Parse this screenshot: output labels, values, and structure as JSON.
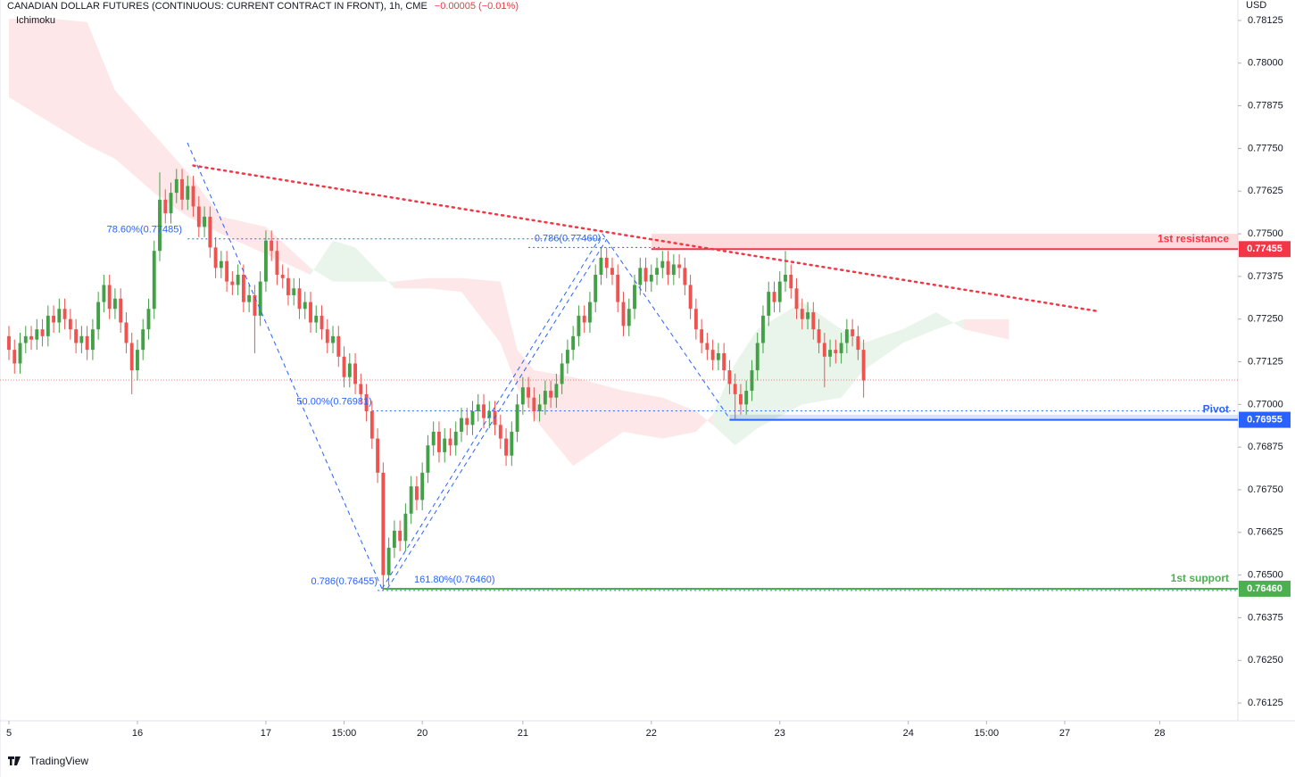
{
  "header": {
    "title": "CANADIAN DOLLAR FUTURES (CONTINUOUS: CURRENT CONTRACT IN FRONT), 1h, CME",
    "change": "−0.00005 (−0.01%)",
    "indicator": "Ichimoku",
    "currency": "USD",
    "brand": "TradingView"
  },
  "chart_data": {
    "type": "candlestick",
    "up_color": "#43a047",
    "down_color": "#ef5350",
    "xlim": [
      0,
      220
    ],
    "xticks": [
      {
        "value": 0,
        "label": "5"
      },
      {
        "value": 23,
        "label": "16"
      },
      {
        "value": 46,
        "label": "17"
      },
      {
        "value": 60,
        "label": "15:00"
      },
      {
        "value": 74,
        "label": "20"
      },
      {
        "value": 92,
        "label": "21"
      },
      {
        "value": 115,
        "label": "22"
      },
      {
        "value": 138,
        "label": "23"
      },
      {
        "value": 161,
        "label": "24"
      },
      {
        "value": 175,
        "label": "15:00"
      },
      {
        "value": 189,
        "label": "27"
      },
      {
        "value": 206,
        "label": "28"
      }
    ],
    "ylim": [
      0.76073,
      0.78185
    ],
    "yticks": [
      {
        "value": 0.78125,
        "label": "0.78125"
      },
      {
        "value": 0.78,
        "label": "0.78000"
      },
      {
        "value": 0.77875,
        "label": "0.77875"
      },
      {
        "value": 0.7775,
        "label": "0.77750"
      },
      {
        "value": 0.77625,
        "label": "0.77625"
      },
      {
        "value": 0.775,
        "label": "0.77500"
      },
      {
        "value": 0.77375,
        "label": "0.77375"
      },
      {
        "value": 0.7725,
        "label": "0.77250"
      },
      {
        "value": 0.77125,
        "label": "0.77125"
      },
      {
        "value": 0.77,
        "label": "0.77000"
      },
      {
        "value": 0.76875,
        "label": "0.76875"
      },
      {
        "value": 0.7675,
        "label": "0.76750"
      },
      {
        "value": 0.76625,
        "label": "0.76625"
      },
      {
        "value": 0.765,
        "label": "0.76500"
      },
      {
        "value": 0.76375,
        "label": "0.76375"
      },
      {
        "value": 0.7625,
        "label": "0.76250"
      },
      {
        "value": 0.76125,
        "label": "0.76125"
      }
    ],
    "x": [
      0,
      1,
      2,
      3,
      4,
      5,
      6,
      7,
      8,
      9,
      10,
      11,
      12,
      13,
      14,
      15,
      16,
      17,
      18,
      19,
      20,
      21,
      22,
      23,
      24,
      25,
      26,
      27,
      28,
      29,
      30,
      31,
      32,
      33,
      34,
      35,
      36,
      37,
      38,
      39,
      40,
      41,
      42,
      43,
      44,
      45,
      46,
      47,
      48,
      49,
      50,
      51,
      52,
      53,
      54,
      55,
      56,
      57,
      58,
      59,
      60,
      61,
      62,
      63,
      64,
      65,
      66,
      67,
      68,
      69,
      70,
      71,
      72,
      73,
      74,
      75,
      76,
      77,
      78,
      79,
      80,
      81,
      82,
      83,
      84,
      85,
      86,
      87,
      88,
      89,
      90,
      91,
      92,
      93,
      94,
      95,
      96,
      97,
      98,
      99,
      100,
      101,
      102,
      103,
      104,
      105,
      106,
      107,
      108,
      109,
      110,
      111,
      112,
      113,
      114,
      115,
      116,
      117,
      118,
      119,
      120,
      121,
      122,
      123,
      124,
      125,
      126,
      127,
      128,
      129,
      130,
      131,
      132,
      133,
      134,
      135,
      136,
      137,
      138,
      139,
      140,
      141,
      142,
      143,
      144,
      145,
      146,
      147,
      148,
      149,
      150,
      151,
      152,
      153
    ],
    "ohlc": [
      [
        0.772,
        0.7723,
        0.7713,
        0.7716
      ],
      [
        0.7716,
        0.7719,
        0.7709,
        0.7712
      ],
      [
        0.7712,
        0.7721,
        0.7709,
        0.7718
      ],
      [
        0.7718,
        0.7723,
        0.7715,
        0.772
      ],
      [
        0.772,
        0.7723,
        0.7716,
        0.7719
      ],
      [
        0.7719,
        0.7725,
        0.7716,
        0.7722
      ],
      [
        0.7722,
        0.7725,
        0.7717,
        0.772
      ],
      [
        0.772,
        0.7729,
        0.7717,
        0.7726
      ],
      [
        0.7726,
        0.7729,
        0.7721,
        0.7724
      ],
      [
        0.7724,
        0.7731,
        0.7721,
        0.7728
      ],
      [
        0.7728,
        0.7731,
        0.7722,
        0.7725
      ],
      [
        0.7725,
        0.7728,
        0.7719,
        0.7722
      ],
      [
        0.7722,
        0.7725,
        0.7715,
        0.7718
      ],
      [
        0.7718,
        0.7723,
        0.7715,
        0.772
      ],
      [
        0.772,
        0.7723,
        0.7713,
        0.7716
      ],
      [
        0.7716,
        0.7725,
        0.7713,
        0.7722
      ],
      [
        0.7722,
        0.7733,
        0.7719,
        0.773
      ],
      [
        0.773,
        0.7738,
        0.7727,
        0.7735
      ],
      [
        0.7735,
        0.7738,
        0.7725,
        0.7728
      ],
      [
        0.7728,
        0.7734,
        0.7725,
        0.7731
      ],
      [
        0.7731,
        0.7734,
        0.7721,
        0.7724
      ],
      [
        0.7724,
        0.7727,
        0.7715,
        0.7718
      ],
      [
        0.7718,
        0.7721,
        0.7703,
        0.771
      ],
      [
        0.771,
        0.7719,
        0.7707,
        0.7716
      ],
      [
        0.7716,
        0.7725,
        0.7713,
        0.7722
      ],
      [
        0.7722,
        0.7731,
        0.7719,
        0.7728
      ],
      [
        0.7728,
        0.7748,
        0.7725,
        0.7745
      ],
      [
        0.7745,
        0.7768,
        0.7742,
        0.776
      ],
      [
        0.776,
        0.7763,
        0.7753,
        0.7756
      ],
      [
        0.7756,
        0.7765,
        0.7753,
        0.7762
      ],
      [
        0.7762,
        0.7769,
        0.7759,
        0.7766
      ],
      [
        0.7766,
        0.7769,
        0.7757,
        0.776
      ],
      [
        0.776,
        0.7767,
        0.7757,
        0.7764
      ],
      [
        0.7764,
        0.7767,
        0.7755,
        0.7758
      ],
      [
        0.7758,
        0.7761,
        0.7749,
        0.7752
      ],
      [
        0.7752,
        0.7758,
        0.7749,
        0.7755
      ],
      [
        0.7755,
        0.7758,
        0.7743,
        0.7746
      ],
      [
        0.7746,
        0.7749,
        0.7737,
        0.774
      ],
      [
        0.774,
        0.7745,
        0.7737,
        0.7742
      ],
      [
        0.7742,
        0.7745,
        0.7733,
        0.7736
      ],
      [
        0.7736,
        0.7739,
        0.7732,
        0.7735
      ],
      [
        0.7735,
        0.7741,
        0.7732,
        0.7738
      ],
      [
        0.7738,
        0.7741,
        0.7727,
        0.773
      ],
      [
        0.773,
        0.7735,
        0.7727,
        0.7732
      ],
      [
        0.7732,
        0.7735,
        0.7715,
        0.7726
      ],
      [
        0.7726,
        0.7739,
        0.7723,
        0.7736
      ],
      [
        0.7736,
        0.7751,
        0.7733,
        0.7748
      ],
      [
        0.7748,
        0.7751,
        0.7742,
        0.7745
      ],
      [
        0.7745,
        0.7748,
        0.7735,
        0.7738
      ],
      [
        0.7738,
        0.7741,
        0.7734,
        0.7737
      ],
      [
        0.7737,
        0.774,
        0.7729,
        0.7732
      ],
      [
        0.7732,
        0.7737,
        0.7729,
        0.7734
      ],
      [
        0.7734,
        0.7737,
        0.7725,
        0.7728
      ],
      [
        0.7728,
        0.7733,
        0.7725,
        0.773
      ],
      [
        0.773,
        0.7733,
        0.7721,
        0.7724
      ],
      [
        0.7724,
        0.7729,
        0.7721,
        0.7726
      ],
      [
        0.7726,
        0.7729,
        0.7719,
        0.7722
      ],
      [
        0.7722,
        0.7725,
        0.7715,
        0.7718
      ],
      [
        0.7718,
        0.7723,
        0.7715,
        0.772
      ],
      [
        0.772,
        0.7723,
        0.7711,
        0.7714
      ],
      [
        0.7714,
        0.7717,
        0.7705,
        0.7708
      ],
      [
        0.7708,
        0.7715,
        0.7705,
        0.7712
      ],
      [
        0.7712,
        0.7715,
        0.7703,
        0.7706
      ],
      [
        0.7706,
        0.7709,
        0.77,
        0.7703
      ],
      [
        0.7703,
        0.7706,
        0.7695,
        0.7698
      ],
      [
        0.7698,
        0.7701,
        0.7687,
        0.769
      ],
      [
        0.769,
        0.7693,
        0.7677,
        0.768
      ],
      [
        0.768,
        0.7683,
        0.76455,
        0.765
      ],
      [
        0.765,
        0.7661,
        0.7647,
        0.7658
      ],
      [
        0.7658,
        0.7666,
        0.7655,
        0.7663
      ],
      [
        0.7663,
        0.7666,
        0.7657,
        0.766
      ],
      [
        0.766,
        0.7671,
        0.7657,
        0.7668
      ],
      [
        0.7668,
        0.7679,
        0.7665,
        0.7676
      ],
      [
        0.7676,
        0.7679,
        0.7669,
        0.7672
      ],
      [
        0.7672,
        0.7683,
        0.7669,
        0.768
      ],
      [
        0.768,
        0.7691,
        0.7677,
        0.7688
      ],
      [
        0.7688,
        0.7695,
        0.7685,
        0.7692
      ],
      [
        0.7692,
        0.7695,
        0.7683,
        0.7686
      ],
      [
        0.7686,
        0.7693,
        0.7683,
        0.769
      ],
      [
        0.769,
        0.7693,
        0.7685,
        0.7688
      ],
      [
        0.7688,
        0.7695,
        0.7685,
        0.7692
      ],
      [
        0.7692,
        0.7699,
        0.7689,
        0.7696
      ],
      [
        0.7696,
        0.7699,
        0.7691,
        0.7694
      ],
      [
        0.7694,
        0.7701,
        0.7691,
        0.7698
      ],
      [
        0.7698,
        0.7703,
        0.7695,
        0.77
      ],
      [
        0.77,
        0.7703,
        0.7693,
        0.7696
      ],
      [
        0.7696,
        0.7701,
        0.7693,
        0.7698
      ],
      [
        0.7698,
        0.7701,
        0.7691,
        0.7694
      ],
      [
        0.7694,
        0.7697,
        0.7687,
        0.769
      ],
      [
        0.769,
        0.7693,
        0.7682,
        0.7685
      ],
      [
        0.7685,
        0.7695,
        0.7682,
        0.7692
      ],
      [
        0.7692,
        0.7703,
        0.7689,
        0.77
      ],
      [
        0.77,
        0.7708,
        0.7697,
        0.7705
      ],
      [
        0.7705,
        0.7708,
        0.7699,
        0.7702
      ],
      [
        0.7702,
        0.7705,
        0.7695,
        0.7698
      ],
      [
        0.7698,
        0.7703,
        0.7695,
        0.77
      ],
      [
        0.77,
        0.7707,
        0.7697,
        0.7704
      ],
      [
        0.7704,
        0.7707,
        0.7699,
        0.7702
      ],
      [
        0.7702,
        0.7709,
        0.7699,
        0.7706
      ],
      [
        0.7706,
        0.7715,
        0.7703,
        0.7712
      ],
      [
        0.7712,
        0.7719,
        0.7709,
        0.7716
      ],
      [
        0.7716,
        0.7723,
        0.7713,
        0.772
      ],
      [
        0.772,
        0.7729,
        0.7717,
        0.7726
      ],
      [
        0.7726,
        0.7729,
        0.7721,
        0.7724
      ],
      [
        0.7724,
        0.7733,
        0.7721,
        0.773
      ],
      [
        0.773,
        0.7741,
        0.7727,
        0.7738
      ],
      [
        0.7738,
        0.7746,
        0.7735,
        0.7743
      ],
      [
        0.7743,
        0.7746,
        0.7737,
        0.774
      ],
      [
        0.774,
        0.7743,
        0.7735,
        0.7738
      ],
      [
        0.7738,
        0.7741,
        0.7727,
        0.773
      ],
      [
        0.773,
        0.7733,
        0.772,
        0.7723
      ],
      [
        0.7723,
        0.7731,
        0.772,
        0.7728
      ],
      [
        0.7728,
        0.7738,
        0.7725,
        0.7735
      ],
      [
        0.7735,
        0.7743,
        0.7732,
        0.774
      ],
      [
        0.774,
        0.7743,
        0.7733,
        0.7736
      ],
      [
        0.7736,
        0.7741,
        0.7733,
        0.7738
      ],
      [
        0.7738,
        0.7743,
        0.7735,
        0.774
      ],
      [
        0.774,
        0.7745,
        0.7737,
        0.7742
      ],
      [
        0.7742,
        0.7745,
        0.7735,
        0.7738
      ],
      [
        0.7738,
        0.7744,
        0.7735,
        0.7741
      ],
      [
        0.7741,
        0.7744,
        0.7737,
        0.774
      ],
      [
        0.774,
        0.7743,
        0.7732,
        0.7735
      ],
      [
        0.7735,
        0.7738,
        0.7725,
        0.7728
      ],
      [
        0.7728,
        0.7731,
        0.7719,
        0.7722
      ],
      [
        0.7722,
        0.7725,
        0.7715,
        0.7718
      ],
      [
        0.7718,
        0.7721,
        0.7713,
        0.7716
      ],
      [
        0.7716,
        0.7719,
        0.771,
        0.7713
      ],
      [
        0.7713,
        0.7718,
        0.771,
        0.7715
      ],
      [
        0.7715,
        0.7718,
        0.7707,
        0.771
      ],
      [
        0.771,
        0.7713,
        0.7703,
        0.7706
      ],
      [
        0.7706,
        0.7709,
        0.76955,
        0.7703
      ],
      [
        0.7703,
        0.7706,
        0.7697,
        0.77
      ],
      [
        0.77,
        0.7707,
        0.7697,
        0.7704
      ],
      [
        0.7704,
        0.7713,
        0.7701,
        0.771
      ],
      [
        0.771,
        0.7721,
        0.7707,
        0.7718
      ],
      [
        0.7718,
        0.7729,
        0.7715,
        0.7726
      ],
      [
        0.7726,
        0.7736,
        0.7723,
        0.7733
      ],
      [
        0.7733,
        0.7736,
        0.7727,
        0.773
      ],
      [
        0.773,
        0.7739,
        0.7727,
        0.7736
      ],
      [
        0.7736,
        0.7745,
        0.7733,
        0.7738
      ],
      [
        0.7738,
        0.7741,
        0.7731,
        0.7734
      ],
      [
        0.7734,
        0.7737,
        0.7725,
        0.7728
      ],
      [
        0.7728,
        0.7731,
        0.7722,
        0.7725
      ],
      [
        0.7725,
        0.773,
        0.7722,
        0.7727
      ],
      [
        0.7727,
        0.773,
        0.7719,
        0.7722
      ],
      [
        0.7722,
        0.7725,
        0.7715,
        0.7718
      ],
      [
        0.7718,
        0.7721,
        0.7705,
        0.7714
      ],
      [
        0.7714,
        0.7719,
        0.7711,
        0.7716
      ],
      [
        0.7716,
        0.7719,
        0.7712,
        0.7715
      ],
      [
        0.7715,
        0.7721,
        0.7712,
        0.7718
      ],
      [
        0.7718,
        0.7725,
        0.7715,
        0.7722
      ],
      [
        0.7722,
        0.7725,
        0.7717,
        0.772
      ],
      [
        0.772,
        0.7723,
        0.7713,
        0.7716
      ],
      [
        0.7716,
        0.7719,
        0.7702,
        0.7707
      ]
    ],
    "cloud": {
      "up_color": "#4caf50",
      "down_color": "#f23645",
      "x": [
        0,
        8,
        14,
        19,
        26,
        32,
        38,
        46,
        54,
        58,
        62,
        69,
        75,
        81,
        88,
        91,
        94,
        101,
        110,
        117,
        123,
        126,
        130,
        134,
        142,
        149,
        153,
        160,
        166,
        171,
        179
      ],
      "span_a": [
        0.779,
        0.7782,
        0.7776,
        0.7772,
        0.7762,
        0.7755,
        0.775,
        0.7744,
        0.7738,
        0.7748,
        0.7746,
        0.7734,
        0.7734,
        0.7733,
        0.7718,
        0.7705,
        0.7696,
        0.7682,
        0.7692,
        0.769,
        0.7692,
        0.7697,
        0.7712,
        0.7722,
        0.773,
        0.7722,
        0.7718,
        0.7722,
        0.7727,
        0.7722,
        0.7719
      ],
      "span_b": [
        0.7813,
        0.7813,
        0.7812,
        0.7792,
        0.7779,
        0.7768,
        0.7755,
        0.7752,
        0.774,
        0.7736,
        0.7736,
        0.7736,
        0.7737,
        0.7737,
        0.7736,
        0.7716,
        0.771,
        0.7708,
        0.7704,
        0.7702,
        0.7698,
        0.7694,
        0.7688,
        0.7693,
        0.77,
        0.7702,
        0.771,
        0.7718,
        0.7722,
        0.7725,
        0.7725
      ]
    },
    "trendline": {
      "x": [
        33,
        195
      ],
      "values": [
        0.777,
        0.77273
      ],
      "color": "#f23645"
    },
    "levels": [
      {
        "name": "1st resistance",
        "value": 0.77455,
        "label": "0.77455",
        "color": "#f23645",
        "x_start": 115,
        "zone_top": 0.775
      },
      {
        "name": "Pivot",
        "value": 0.76955,
        "label": "0.76955",
        "color": "#2962ff",
        "x_start": 129,
        "zone_top": 0.7697
      },
      {
        "name": "1st support",
        "value": 0.7646,
        "label": "0.76460",
        "color": "#4caf50",
        "x_start": 67,
        "zone_top": 0.7646
      }
    ],
    "fib": {
      "color": "#2962ff",
      "items": [
        {
          "label": "78.60%(0.77485)",
          "value": 0.77485,
          "span": [
            32,
            107
          ],
          "label_at": 31
        },
        {
          "label": "0.786(0.77460)",
          "value": 0.7746,
          "span": [
            93,
            117
          ],
          "label_at": 106
        },
        {
          "label": "50.00%(0.76981)",
          "value": 0.76981,
          "span": [
            65,
            220
          ],
          "label_at": 65
        },
        {
          "label": "0.786(0.76455)",
          "value": 0.76455,
          "span": [
            66,
            220
          ],
          "label_at": 66
        },
        {
          "label": "161.80%(0.76460)",
          "value": 0.7646,
          "span": [
            67,
            220
          ],
          "label_at": 87
        }
      ]
    }
  }
}
